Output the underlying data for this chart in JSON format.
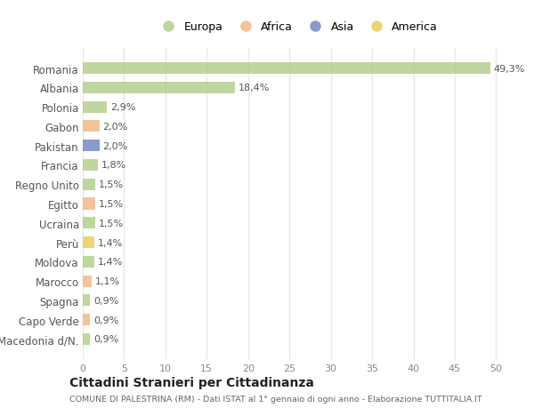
{
  "countries": [
    "Romania",
    "Albania",
    "Polonia",
    "Gabon",
    "Pakistan",
    "Francia",
    "Regno Unito",
    "Egitto",
    "Ucraina",
    "Perù",
    "Moldova",
    "Marocco",
    "Spagna",
    "Capo Verde",
    "Macedonia d/N."
  ],
  "values": [
    49.3,
    18.4,
    2.9,
    2.0,
    2.0,
    1.8,
    1.5,
    1.5,
    1.5,
    1.4,
    1.4,
    1.1,
    0.9,
    0.9,
    0.9
  ],
  "labels": [
    "49,3%",
    "18,4%",
    "2,9%",
    "2,0%",
    "2,0%",
    "1,8%",
    "1,5%",
    "1,5%",
    "1,5%",
    "1,4%",
    "1,4%",
    "1,1%",
    "0,9%",
    "0,9%",
    "0,9%"
  ],
  "continents": [
    "Europa",
    "Europa",
    "Europa",
    "Africa",
    "Asia",
    "Europa",
    "Europa",
    "Africa",
    "Europa",
    "America",
    "Europa",
    "Africa",
    "Europa",
    "Africa",
    "Europa"
  ],
  "continent_colors": {
    "Europa": "#aac97e",
    "Africa": "#f0b077",
    "Asia": "#6677bb",
    "America": "#e8c84a"
  },
  "legend_order": [
    "Europa",
    "Africa",
    "Asia",
    "America"
  ],
  "title": "Cittadini Stranieri per Cittadinanza",
  "subtitle": "COMUNE DI PALESTRINA (RM) - Dati ISTAT al 1° gennaio di ogni anno - Elaborazione TUTTITALIA.IT",
  "xlim": [
    0,
    52
  ],
  "xticks": [
    0,
    5,
    10,
    15,
    20,
    25,
    30,
    35,
    40,
    45,
    50
  ],
  "background_color": "#ffffff",
  "grid_color": "#e8e8e8",
  "bar_alpha": 0.75
}
